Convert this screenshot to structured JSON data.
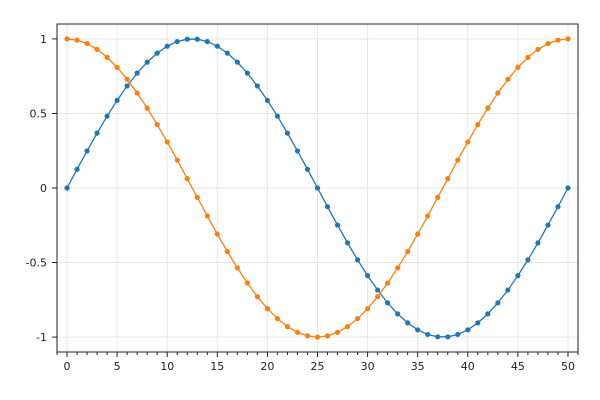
{
  "chart_data": {
    "type": "line",
    "title": "",
    "xlabel": "",
    "ylabel": "",
    "xlim": [
      -1,
      51
    ],
    "ylim": [
      -1.1,
      1.1
    ],
    "x_ticks": [
      0,
      5,
      10,
      15,
      20,
      25,
      30,
      35,
      40,
      45,
      50
    ],
    "x_tick_labels": [
      "0",
      "5",
      "10",
      "15",
      "20",
      "25",
      "30",
      "35",
      "40",
      "45",
      "50"
    ],
    "x_minor_step": 1,
    "y_ticks": [
      1,
      0.5,
      0,
      -0.5,
      -1
    ],
    "y_tick_labels": [
      "1",
      "0.5",
      "0",
      "-0.5",
      "-1"
    ],
    "grid": true,
    "legend": "none",
    "x": [
      0,
      1,
      2,
      3,
      4,
      5,
      6,
      7,
      8,
      9,
      10,
      11,
      12,
      13,
      14,
      15,
      16,
      17,
      18,
      19,
      20,
      21,
      22,
      23,
      24,
      25,
      26,
      27,
      28,
      29,
      30,
      31,
      32,
      33,
      34,
      35,
      36,
      37,
      38,
      39,
      40,
      41,
      42,
      43,
      44,
      45,
      46,
      47,
      48,
      49,
      50
    ],
    "series": [
      {
        "color": "#1f77b4",
        "marker": "circle",
        "values": [
          0,
          0.1253,
          0.2487,
          0.3681,
          0.4818,
          0.5878,
          0.6845,
          0.7705,
          0.8443,
          0.9048,
          0.9511,
          0.9823,
          0.998,
          0.998,
          0.9823,
          0.9511,
          0.9048,
          0.8443,
          0.7705,
          0.6845,
          0.5878,
          0.4818,
          0.3681,
          0.2487,
          0.1253,
          0,
          -0.1253,
          -0.2487,
          -0.3681,
          -0.4818,
          -0.5878,
          -0.6845,
          -0.7705,
          -0.8443,
          -0.9048,
          -0.9511,
          -0.9823,
          -0.998,
          -0.998,
          -0.9823,
          -0.9511,
          -0.9048,
          -0.8443,
          -0.7705,
          -0.6845,
          -0.5878,
          -0.4818,
          -0.3681,
          -0.2487,
          -0.1253,
          0
        ]
      },
      {
        "color": "#ff7f0e",
        "marker": "circle",
        "values": [
          1,
          0.9921,
          0.9686,
          0.9298,
          0.8763,
          0.809,
          0.729,
          0.6374,
          0.5358,
          0.4258,
          0.309,
          0.1874,
          0.0628,
          -0.0628,
          -0.1874,
          -0.309,
          -0.4258,
          -0.5358,
          -0.6374,
          -0.729,
          -0.809,
          -0.8763,
          -0.9298,
          -0.9686,
          -0.9921,
          -1,
          -0.9921,
          -0.9686,
          -0.9298,
          -0.8763,
          -0.809,
          -0.729,
          -0.6374,
          -0.5358,
          -0.4258,
          -0.309,
          -0.1874,
          -0.0628,
          0.0628,
          0.1874,
          0.309,
          0.4258,
          0.5358,
          0.6374,
          0.729,
          0.809,
          0.8763,
          0.9298,
          0.9686,
          0.9921,
          1
        ]
      }
    ]
  }
}
